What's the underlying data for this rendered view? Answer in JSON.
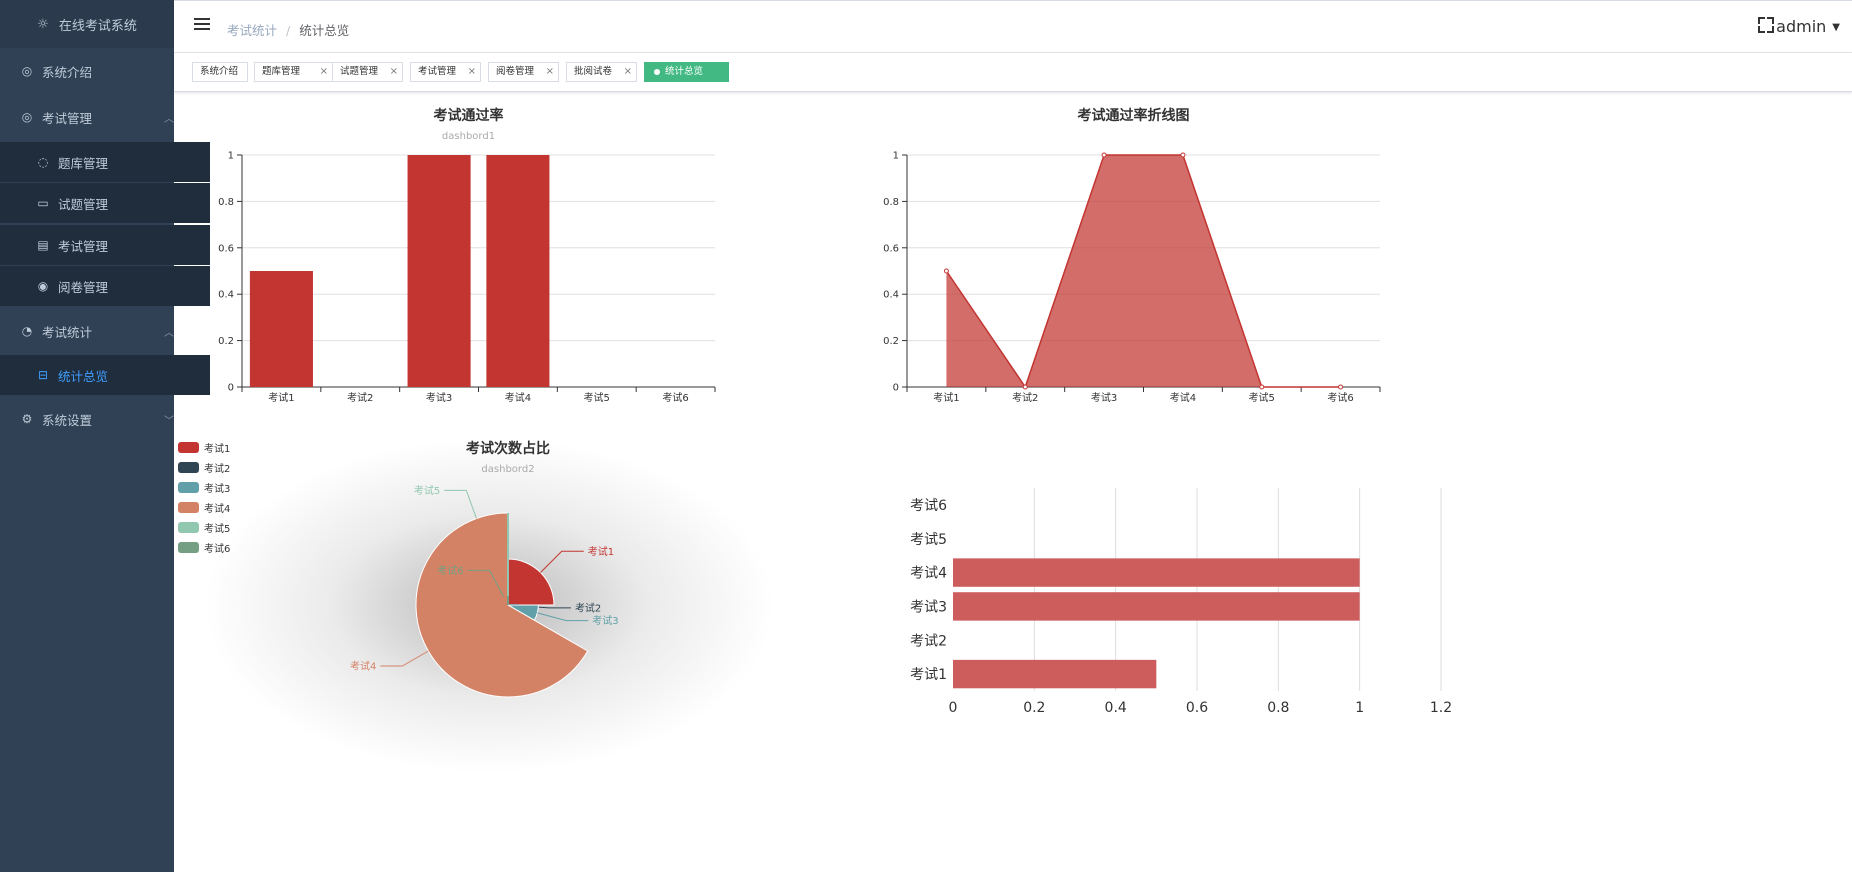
{
  "app": {
    "title": "在线考试系统",
    "user": "admin"
  },
  "sidebar": {
    "items": [
      {
        "label": "系统介绍",
        "icon": "dashboard-icon",
        "type": "top"
      },
      {
        "label": "考试管理",
        "icon": "exam-manage-icon",
        "type": "group",
        "expanded": true
      },
      {
        "label": "题库管理",
        "icon": "question-bank-icon",
        "type": "sub"
      },
      {
        "label": "试题管理",
        "icon": "question-edit-icon",
        "type": "sub"
      },
      {
        "label": "考试管理",
        "icon": "exam-list-icon",
        "type": "sub"
      },
      {
        "label": "阅卷管理",
        "icon": "eye-icon",
        "type": "sub"
      },
      {
        "label": "考试统计",
        "icon": "pie-chart-icon",
        "type": "group",
        "expanded": true
      },
      {
        "label": "统计总览",
        "icon": "shopping-icon",
        "type": "sub",
        "active": true
      },
      {
        "label": "系统设置",
        "icon": "settings-icon",
        "type": "group",
        "expanded": false
      }
    ]
  },
  "breadcrumb": [
    "考试统计",
    "统计总览"
  ],
  "tags": [
    {
      "label": "系统介绍",
      "closable": false
    },
    {
      "label": "题库管理",
      "closable": true
    },
    {
      "label": "试题管理",
      "closable": true
    },
    {
      "label": "考试管理",
      "closable": true
    },
    {
      "label": "阅卷管理",
      "closable": true
    },
    {
      "label": "批阅试卷",
      "closable": true
    },
    {
      "label": "统计总览",
      "closable": false,
      "active": true
    }
  ],
  "chart_data": [
    {
      "type": "bar",
      "title": "考试通过率",
      "subtitle": "dashbord1",
      "categories": [
        "考试1",
        "考试2",
        "考试3",
        "考试4",
        "考试5",
        "考试6"
      ],
      "values": [
        0.5,
        0,
        1,
        1,
        0,
        0
      ],
      "yticks": [
        0,
        0.2,
        0.4,
        0.6,
        0.8,
        1
      ],
      "ylim": [
        0,
        1
      ],
      "color": "#c23531"
    },
    {
      "type": "area",
      "title": "考试通过率折线图",
      "subtitle": "",
      "categories": [
        "考试1",
        "考试2",
        "考试3",
        "考试4",
        "考试5",
        "考试6"
      ],
      "values": [
        0.5,
        0,
        1,
        1,
        0,
        0
      ],
      "yticks": [
        0,
        0.2,
        0.4,
        0.6,
        0.8,
        1
      ],
      "ylim": [
        0,
        1
      ],
      "color": "#c23531"
    },
    {
      "type": "pie",
      "title": "考试次数占比",
      "subtitle": "dashbord2",
      "labels": [
        "考试1",
        "考试2",
        "考试3",
        "考试4",
        "考试5",
        "考试6"
      ],
      "values": [
        3,
        0,
        1,
        8,
        0,
        0
      ],
      "radii": [
        0.5,
        0.12,
        0.33,
        1.0,
        1.0,
        0.1
      ],
      "colors": [
        "#c23531",
        "#2f4554",
        "#61a0a8",
        "#d48265",
        "#91c7ae",
        "#749f83"
      ],
      "legend_position": "left"
    },
    {
      "type": "bar-horizontal",
      "title": "",
      "categories": [
        "考试1",
        "考试2",
        "考试3",
        "考试4",
        "考试5",
        "考试6"
      ],
      "values": [
        0.5,
        0,
        1,
        1,
        0,
        0
      ],
      "xticks": [
        0,
        0.2,
        0.4,
        0.6,
        0.8,
        1,
        1.2
      ],
      "xlim": [
        0,
        1.2
      ],
      "color": "#cd5c5c"
    }
  ]
}
